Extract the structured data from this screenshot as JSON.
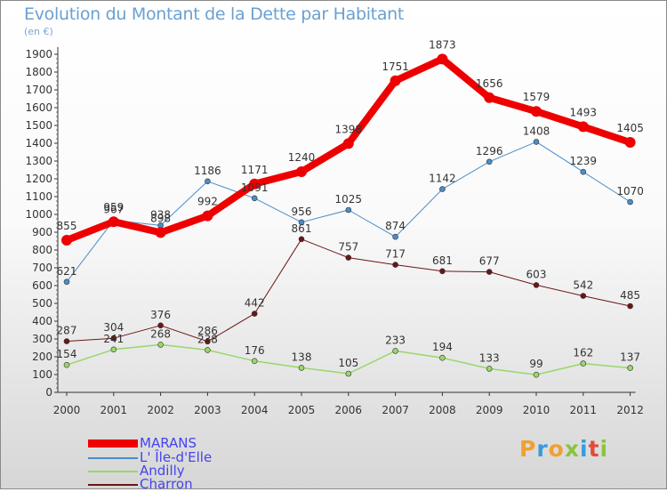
{
  "title": "Evolution du Montant de la Dette par Habitant",
  "subtitle": "(en €)",
  "logo": {
    "text": "Proxiti",
    "colors": [
      "#f0a030",
      "#3a9ad9",
      "#f0a030",
      "#8ac43f",
      "#3a9ad9",
      "#e24b3b",
      "#8ac43f"
    ]
  },
  "chart_data": {
    "type": "line",
    "x": [
      "2000",
      "2001",
      "2002",
      "2003",
      "2004",
      "2005",
      "2006",
      "2007",
      "2008",
      "2009",
      "2010",
      "2011",
      "2012"
    ],
    "ylim": [
      0,
      1900
    ],
    "yticks": [
      0,
      100,
      200,
      300,
      400,
      500,
      600,
      700,
      800,
      900,
      1000,
      1100,
      1200,
      1300,
      1400,
      1500,
      1600,
      1700,
      1800,
      1900
    ],
    "grid": false,
    "legend_position": "bottom-left",
    "series": [
      {
        "name": "MARANS",
        "color": "#ee0000",
        "width": 8,
        "values": [
          855,
          959,
          898,
          992,
          1171,
          1240,
          1398,
          1751,
          1873,
          1656,
          1579,
          1493,
          1405
        ],
        "labels": [
          "855",
          "959",
          "898",
          "992",
          "1171",
          "1240",
          "1398",
          "1751",
          "1873",
          "1656",
          "1579",
          "1493",
          "1405"
        ]
      },
      {
        "name": "L' Île-d'Elle",
        "color": "#4a8dc8",
        "width": 1,
        "values": [
          621,
          967,
          938,
          1186,
          1091,
          956,
          1025,
          874,
          1142,
          1296,
          1408,
          1239,
          1070
        ],
        "labels": [
          "621",
          "967",
          "938",
          "1186",
          "1091",
          "956",
          "1025",
          "874",
          "1142",
          "1296",
          "1408",
          "1239",
          "1070"
        ]
      },
      {
        "name": "Andilly",
        "color": "#9ad66a",
        "width": 1.5,
        "values": [
          154,
          241,
          268,
          238,
          176,
          138,
          105,
          233,
          194,
          133,
          99,
          162,
          137
        ],
        "labels": [
          "154",
          "241",
          "268",
          "238",
          "176",
          "138",
          "105",
          "233",
          "194",
          "133",
          "99",
          "162",
          "137"
        ]
      },
      {
        "name": "Charron",
        "color": "#6b1616",
        "width": 1,
        "values": [
          287,
          304,
          376,
          286,
          442,
          861,
          757,
          717,
          681,
          677,
          603,
          542,
          485
        ],
        "labels": [
          "287",
          "304",
          "376",
          "286",
          "442",
          "861",
          "757",
          "717",
          "681",
          "677",
          "603",
          "542",
          "485"
        ]
      }
    ]
  }
}
